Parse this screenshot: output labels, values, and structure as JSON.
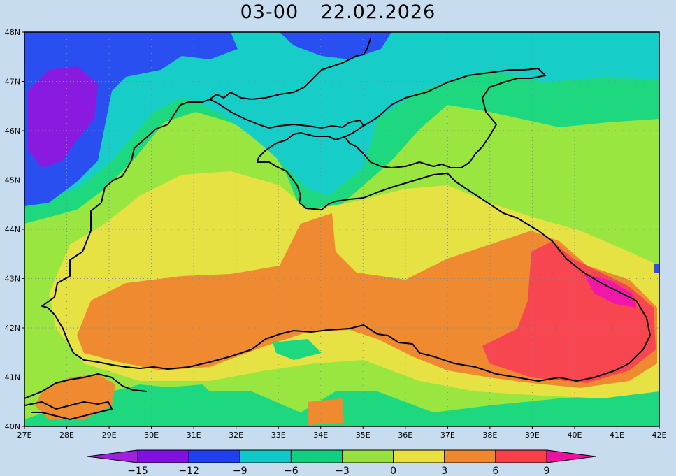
{
  "title": {
    "time": "03-00",
    "date": "22.02.2026"
  },
  "map": {
    "lon_range": [
      27,
      42
    ],
    "lat_range": [
      40,
      48
    ],
    "grid": "dotted",
    "x_ticks": [
      "27E",
      "28E",
      "29E",
      "30E",
      "31E",
      "32E",
      "33E",
      "34E",
      "35E",
      "36E",
      "37E",
      "38E",
      "39E",
      "40E",
      "41E",
      "42E"
    ],
    "y_ticks": [
      "40N",
      "41N",
      "42N",
      "43N",
      "44N",
      "45N",
      "46N",
      "47N",
      "48N"
    ]
  },
  "colorbar": {
    "labels": [
      "-15",
      "-12",
      "-9",
      "-6",
      "-3",
      "0",
      "3",
      "6",
      "9"
    ],
    "colors": [
      "#a020e0",
      "#8010e0",
      "#2040f0",
      "#10c8c8",
      "#10d080",
      "#98e040",
      "#e8e040",
      "#f08830",
      "#f84048",
      "#f010a0"
    ]
  },
  "palette": {
    "violet": "#8a1ae0",
    "blue": "#2a4ff0",
    "cyan": "#16cdc8",
    "green": "#1ed880",
    "lime": "#9ae640",
    "yellow": "#e6e244",
    "orange": "#f08a30",
    "red": "#f84650",
    "magenta": "#f018a8",
    "coast": "#000000"
  }
}
